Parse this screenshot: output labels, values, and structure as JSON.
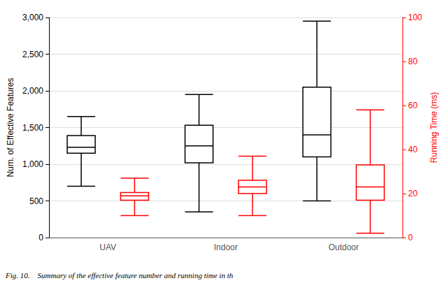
{
  "chart_data": {
    "type": "boxplot",
    "categories": [
      "UAV",
      "Indoor",
      "Outdoor"
    ],
    "series": [
      {
        "color": "#000000",
        "values": [
          [
            700,
            1150,
            1230,
            1390,
            1650
          ],
          [
            350,
            1020,
            1250,
            1530,
            1950
          ],
          [
            500,
            1100,
            1400,
            2050,
            2950
          ]
        ]
      },
      {
        "color": "#ff0000",
        "axis": "y2",
        "values": [
          [
            10,
            17,
            19,
            20.5,
            27
          ],
          [
            10,
            20,
            23,
            26,
            37
          ],
          [
            2,
            17,
            23,
            33,
            58
          ]
        ]
      }
    ],
    "ylabel": "Num. of Effective Features",
    "y2label": "Running Time (ms)",
    "ylim": [
      0,
      3000
    ],
    "yticks": [
      0,
      500,
      1000,
      1500,
      2000,
      2500,
      3000
    ],
    "y2lim": [
      0,
      100
    ],
    "y2ticks": [
      0,
      20,
      40,
      60,
      80,
      100
    ],
    "grid": true,
    "caption": "Fig. 10.    Summary of the effective feature number and running time in th"
  }
}
